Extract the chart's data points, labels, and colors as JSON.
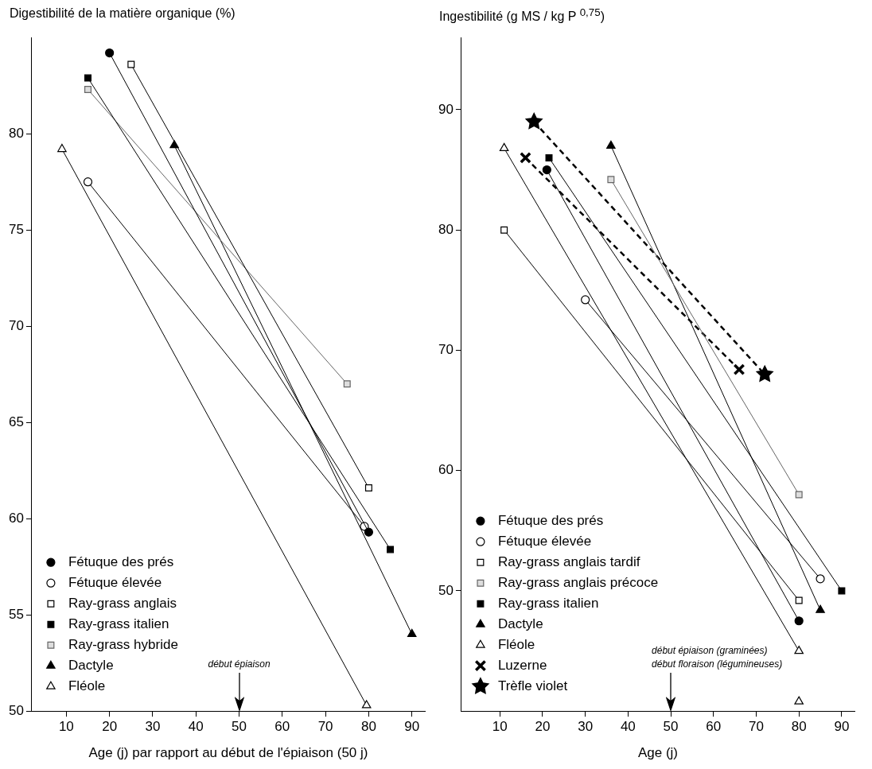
{
  "chart_data": [
    {
      "type": "line",
      "ylabel": "Digestibilité de la matière organique (%)",
      "xlabel": "Age (j) par rapport au début de l'épiaison (50 j)",
      "xlim": [
        2,
        93
      ],
      "ylim": [
        50,
        85
      ],
      "xticks": [
        10,
        20,
        30,
        40,
        50,
        60,
        70,
        80,
        90
      ],
      "yticks": [
        50,
        55,
        60,
        65,
        70,
        75,
        80
      ],
      "legend": "bottom left",
      "ref_lines": [
        {
          "axis": "x",
          "value": 50,
          "label": "début épiaison"
        }
      ],
      "series": [
        {
          "name": "Fétuque des prés",
          "color": "#000000",
          "colors": [
            "#000000",
            "#000000"
          ],
          "marker": "circle",
          "x": [
            20,
            80
          ],
          "values": [
            84.2,
            59.3
          ]
        },
        {
          "name": "Fétuque élevée",
          "color": "#000000",
          "colors": [
            "#ffffff",
            "#ffffff"
          ],
          "marker": "circle",
          "x": [
            15,
            79
          ],
          "values": [
            77.5,
            59.6
          ]
        },
        {
          "name": "Ray-grass anglais",
          "color": "#000000",
          "colors": [
            "#ffffff",
            "#ffffff"
          ],
          "marker": "square",
          "x": [
            25,
            80
          ],
          "values": [
            83.6,
            61.6
          ]
        },
        {
          "name": "Ray-grass italien",
          "color": "#000000",
          "colors": [
            "#000000",
            "#000000"
          ],
          "marker": "square",
          "x": [
            15,
            85
          ],
          "values": [
            82.9,
            58.4
          ]
        },
        {
          "name": "Ray-grass hybride",
          "color": "#666666",
          "colors": [
            "#dddddd",
            "#dddddd"
          ],
          "marker": "square",
          "x": [
            15,
            75
          ],
          "values": [
            82.3,
            67
          ]
        },
        {
          "name": "Dactyle",
          "color": "#000000",
          "colors": [
            "#000000",
            "#000000"
          ],
          "marker": "triangle",
          "x": [
            35,
            90
          ],
          "values": [
            79.4,
            54
          ]
        },
        {
          "name": "Fléole",
          "color": "#000000",
          "colors": [
            "#ffffff",
            "#ffffff"
          ],
          "marker": "triangle",
          "x": [
            9,
            79.5
          ],
          "values": [
            79.2,
            50.3
          ]
        }
      ]
    },
    {
      "type": "line",
      "ylabel": "Ingestibilité (g MS / kg P $^{0,75}$)",
      "xlabel": "Age (j)",
      "xlim": [
        1,
        93
      ],
      "ylim": [
        40,
        96
      ],
      "xticks": [
        10,
        20,
        30,
        40,
        50,
        60,
        70,
        80,
        90
      ],
      "yticks": [
        50,
        60,
        70,
        80,
        90
      ],
      "legend": "bottom left",
      "ref_lines": [
        {
          "axis": "x",
          "value": 50,
          "label": "début épiaison (graminées)\ndébut floraison (légumineuses)"
        }
      ],
      "series": [
        {
          "name": "Fétuque des prés",
          "color": "#000000",
          "colors": [
            "#000000",
            "#000000"
          ],
          "marker": "circle",
          "x": [
            21,
            80
          ],
          "values": [
            85,
            47.5
          ]
        },
        {
          "name": "Fétuque élevée",
          "color": "#000000",
          "colors": [
            "#ffffff",
            "#ffffff"
          ],
          "marker": "circle",
          "x": [
            30,
            85
          ],
          "values": [
            74.2,
            51
          ]
        },
        {
          "name": "Ray-grass anglais tardif",
          "color": "#000000",
          "colors": [
            "#ffffff",
            "#ffffff"
          ],
          "marker": "square",
          "x": [
            11,
            80
          ],
          "values": [
            80,
            49.2
          ]
        },
        {
          "name": "Ray-grass anglais précoce",
          "color": "#666666",
          "colors": [
            "#dddddd",
            "#dddddd"
          ],
          "marker": "square",
          "x": [
            36,
            80
          ],
          "values": [
            84.2,
            58
          ]
        },
        {
          "name": "Ray-grass italien",
          "color": "#000000",
          "colors": [
            "#000000",
            "#000000"
          ],
          "marker": "square",
          "x": [
            21.5,
            90
          ],
          "values": [
            86,
            50
          ]
        },
        {
          "name": "Dactyle",
          "color": "#000000",
          "colors": [
            "#000000",
            "#000000"
          ],
          "marker": "triangle",
          "x": [
            36,
            85
          ],
          "values": [
            87,
            48.4
          ]
        },
        {
          "name": "Fléole",
          "color": "#000000",
          "colors": [
            "#ffffff",
            "#ffffff"
          ],
          "marker": "triangle",
          "x": [
            11,
            80
          ],
          "values": [
            86.8,
            45
          ]
        },
        {
          "name": "Luzerne",
          "color": "#000000",
          "colors": [
            "#000000",
            "#000000"
          ],
          "marker": "cross",
          "line_style": "dashed",
          "x": [
            16,
            66
          ],
          "values": [
            86,
            68.4
          ]
        },
        {
          "name": "Trèfle violet",
          "color": "#000000",
          "colors": [
            "#000000",
            "#000000"
          ],
          "marker": "star",
          "line_style": "dashed",
          "x": [
            18,
            72
          ],
          "values": [
            89,
            68
          ]
        },
        {
          "color": "#000000",
          "colors": [
            "#ffffff"
          ],
          "marker": "triangle",
          "x": [
            80
          ],
          "values": [
            40.8
          ]
        }
      ]
    }
  ]
}
